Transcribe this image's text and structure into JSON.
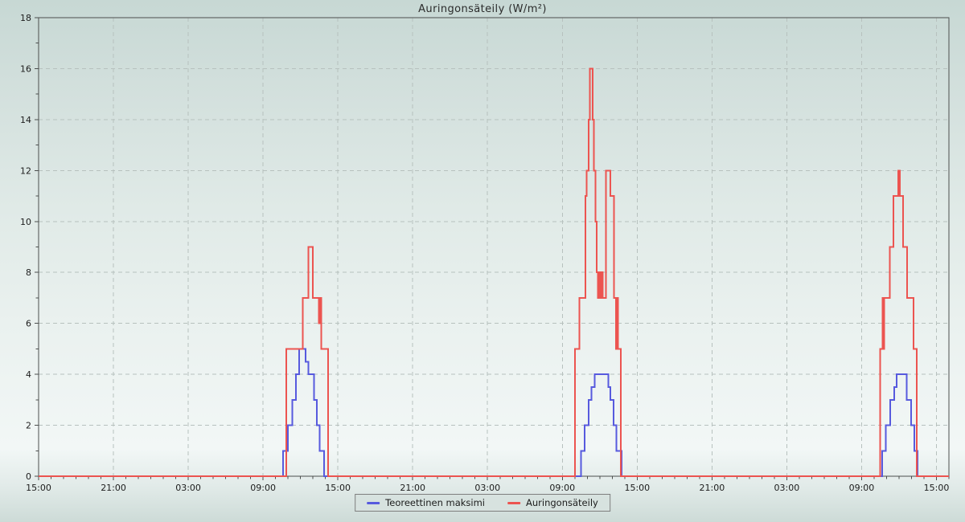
{
  "title": "Auringonsäteily (W/m²)",
  "colors": {
    "axis": "#4c4f4e",
    "grid": "#b7c1be",
    "tick_text": "#1c1c1c",
    "legend_border": "#7e7e7e",
    "legend_background": "#d7e2df",
    "background_top": "#c7d8d4",
    "background_bottom": "#cdddd9"
  },
  "chart_data": {
    "type": "line",
    "subtype": "step",
    "title": "Auringonsäteily (W/m²)",
    "xlabel": "",
    "ylabel": "",
    "grid": true,
    "legend_position": "bottom-center",
    "x_axis": {
      "unit": "time",
      "range_hours": [
        0,
        73
      ],
      "major_tick_hours": 6,
      "minor_tick_hours": 1,
      "tick_labels": [
        "15:00",
        "21:00",
        "03:00",
        "09:00",
        "15:00",
        "21:00",
        "03:00",
        "09:00",
        "15:00",
        "21:00",
        "03:00",
        "09:00",
        "15:00"
      ]
    },
    "y_axis": {
      "range": [
        0,
        18
      ],
      "major_tick": 2,
      "minor_tick": 1,
      "tick_labels": [
        "0",
        "2",
        "4",
        "6",
        "8",
        "10",
        "12",
        "14",
        "16",
        "18"
      ]
    },
    "series": [
      {
        "name": "Teoreettinen maksimi",
        "color": "#575ade",
        "baseline": 0,
        "steps": [
          [
            0,
            0
          ],
          [
            19.6,
            1
          ],
          [
            20.0,
            2
          ],
          [
            20.35,
            3
          ],
          [
            20.65,
            4
          ],
          [
            20.9,
            5
          ],
          [
            21.4,
            4.5
          ],
          [
            21.62,
            4
          ],
          [
            22.1,
            3
          ],
          [
            22.3,
            2
          ],
          [
            22.55,
            1
          ],
          [
            22.9,
            0
          ],
          [
            43.5,
            1
          ],
          [
            43.8,
            2
          ],
          [
            44.1,
            3
          ],
          [
            44.35,
            3.5
          ],
          [
            44.6,
            4
          ],
          [
            45.7,
            3.5
          ],
          [
            45.85,
            3
          ],
          [
            46.1,
            2
          ],
          [
            46.35,
            1
          ],
          [
            46.75,
            0
          ],
          [
            67.65,
            1
          ],
          [
            67.95,
            2
          ],
          [
            68.3,
            3
          ],
          [
            68.6,
            3.5
          ],
          [
            68.8,
            4
          ],
          [
            69.6,
            3
          ],
          [
            69.97,
            2
          ],
          [
            70.23,
            1
          ],
          [
            70.5,
            0
          ]
        ]
      },
      {
        "name": "Auringonsäteily",
        "color": "#ec5450",
        "baseline": 0,
        "steps": [
          [
            0,
            0
          ],
          [
            19.87,
            5
          ],
          [
            21.2,
            7
          ],
          [
            21.62,
            9
          ],
          [
            21.98,
            7
          ],
          [
            22.48,
            6
          ],
          [
            22.56,
            7
          ],
          [
            22.68,
            5
          ],
          [
            23.2,
            0
          ],
          [
            43.0,
            5
          ],
          [
            43.37,
            7
          ],
          [
            43.85,
            11
          ],
          [
            43.95,
            12
          ],
          [
            44.1,
            14
          ],
          [
            44.2,
            16
          ],
          [
            44.42,
            14
          ],
          [
            44.52,
            12
          ],
          [
            44.65,
            10
          ],
          [
            44.75,
            8
          ],
          [
            44.85,
            7
          ],
          [
            44.95,
            8
          ],
          [
            45.05,
            7
          ],
          [
            45.15,
            8
          ],
          [
            45.25,
            7
          ],
          [
            45.5,
            12
          ],
          [
            45.85,
            11
          ],
          [
            46.15,
            7
          ],
          [
            46.3,
            5
          ],
          [
            46.38,
            7
          ],
          [
            46.45,
            5
          ],
          [
            46.7,
            0
          ],
          [
            67.5,
            5
          ],
          [
            67.68,
            7
          ],
          [
            67.74,
            5
          ],
          [
            67.82,
            7
          ],
          [
            68.25,
            9
          ],
          [
            68.55,
            11
          ],
          [
            68.93,
            12
          ],
          [
            69.06,
            11
          ],
          [
            69.32,
            9
          ],
          [
            69.64,
            7
          ],
          [
            70.16,
            5
          ],
          [
            70.42,
            0
          ]
        ]
      }
    ]
  },
  "legend": {
    "items": [
      {
        "label": "Teoreettinen maksimi",
        "swatch_color": "#575ade"
      },
      {
        "label": "Auringonsäteily",
        "swatch_color": "#ec5450"
      }
    ]
  }
}
